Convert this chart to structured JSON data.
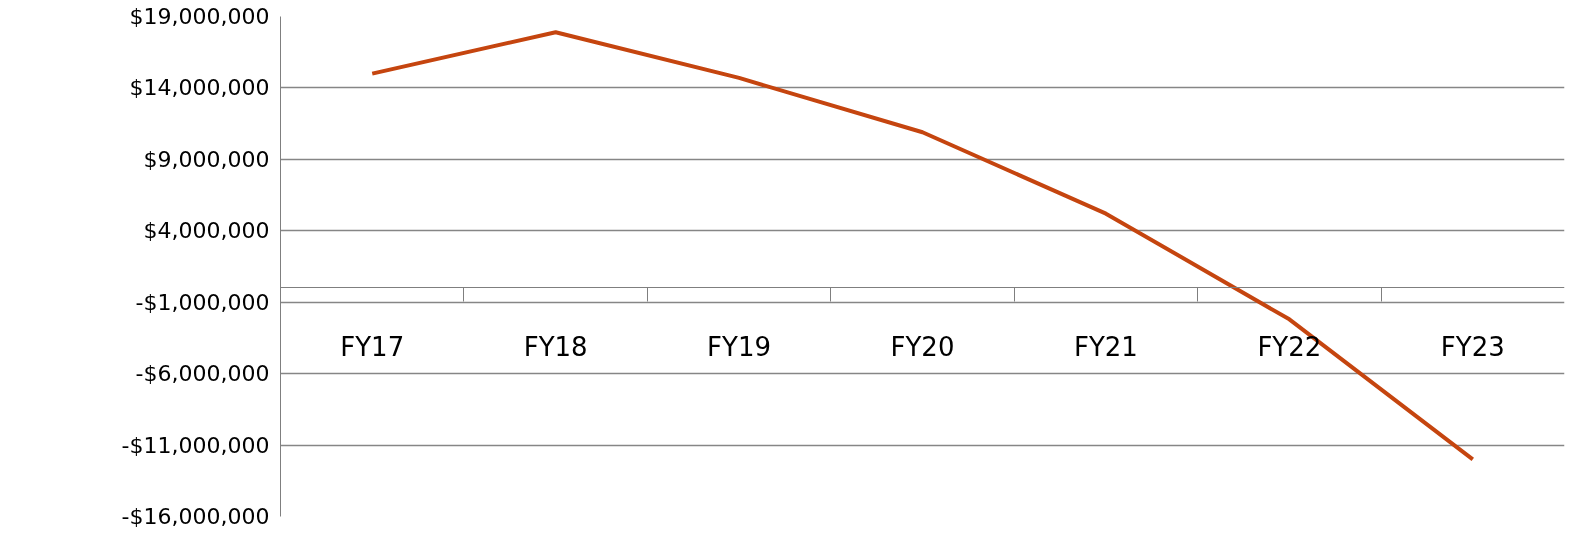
{
  "chart_data": {
    "type": "line",
    "categories": [
      "FY17",
      "FY18",
      "FY19",
      "FY20",
      "FY21",
      "FY22",
      "FY23"
    ],
    "series": [
      {
        "color": "#c5450f",
        "values": [
          15000000,
          17900000,
          14700000,
          10900000,
          5200000,
          -2200000,
          -12000000
        ]
      }
    ],
    "ylim": [
      -16000000,
      19000000
    ],
    "yticks": [
      {
        "value": -16000000,
        "label": "-$16,000,000"
      },
      {
        "value": -11000000,
        "label": "-$11,000,000"
      },
      {
        "value": -6000000,
        "label": "-$6,000,000"
      },
      {
        "value": -1000000,
        "label": "-$1,000,000"
      },
      {
        "value": 4000000,
        "label": "$4,000,000"
      },
      {
        "value": 9000000,
        "label": "$9,000,000"
      },
      {
        "value": 14000000,
        "label": "$14,000,000"
      },
      {
        "value": 19000000,
        "label": "$19,000,000"
      }
    ],
    "grid": "y",
    "marker": "none",
    "line_style": "solid"
  }
}
